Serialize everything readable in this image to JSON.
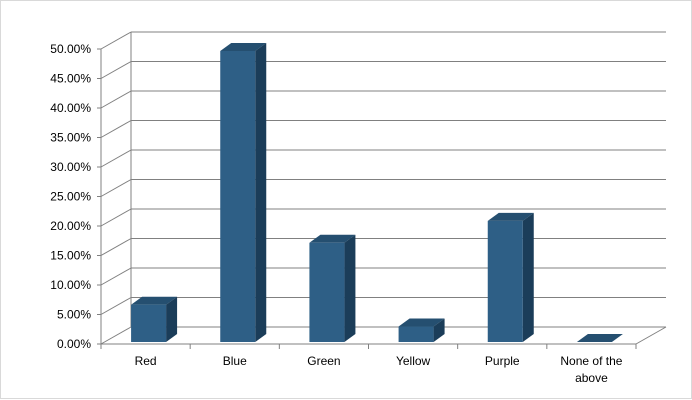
{
  "chart_data": {
    "type": "bar",
    "categories": [
      "Red",
      "Blue",
      "Green",
      "Yellow",
      "Purple",
      "None of the above"
    ],
    "category_label_lines": [
      [
        "Red"
      ],
      [
        "Blue"
      ],
      [
        "Green"
      ],
      [
        "Yellow"
      ],
      [
        "Purple"
      ],
      [
        "None of the",
        "above"
      ]
    ],
    "values": [
      0.07,
      0.5,
      0.175,
      0.033,
      0.212,
      0.0
    ],
    "ylim": [
      0,
      0.5
    ],
    "yticks": [
      0,
      0.05,
      0.1,
      0.15,
      0.2,
      0.25,
      0.3,
      0.35,
      0.4,
      0.45,
      0.5
    ],
    "ytick_labels": [
      "0.00%",
      "5.00%",
      "10.00%",
      "15.00%",
      "20.00%",
      "25.00%",
      "30.00%",
      "35.00%",
      "40.00%",
      "45.00%",
      "50.00%"
    ],
    "title": "",
    "xlabel": "",
    "ylabel": "",
    "grid": true,
    "legend": "none",
    "bar_style": "3d-column",
    "colors": {
      "bar_front": "#2e5f86",
      "bar_side": "#1b3d59",
      "bar_top": "#254f70",
      "grid": "#808080",
      "axis": "#808080"
    }
  }
}
